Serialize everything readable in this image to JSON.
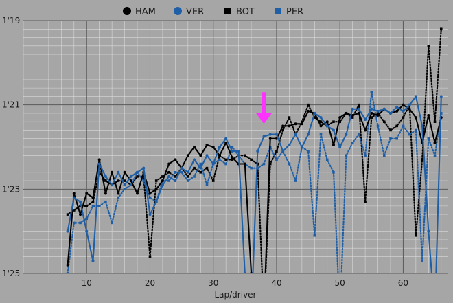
{
  "chart_data": {
    "type": "line",
    "xlabel": "Lap/driver",
    "ylabel": "",
    "xlim": [
      0,
      67
    ],
    "ylim": [
      85,
      79
    ],
    "y_reversed": true,
    "xticks": [
      10,
      20,
      30,
      40,
      50,
      60
    ],
    "yticks": [
      {
        "value": 79,
        "label": "1'19"
      },
      {
        "value": 81,
        "label": "1'21"
      },
      {
        "value": 83,
        "label": "1'23"
      },
      {
        "value": 85,
        "label": "1'25"
      }
    ],
    "grid": "major and minor",
    "legend_position": "top",
    "background_color": "#a6a6a6",
    "grid_color": "#d9d9d9",
    "annotation": {
      "type": "arrow",
      "color": "#ff33ff",
      "x": 38,
      "y_from": 80.7,
      "y_to": 81.45
    },
    "series": [
      {
        "name": "HAM",
        "color": "#000000",
        "style": "solid",
        "marker": "circle",
        "x": [
          7,
          8,
          9,
          10,
          11,
          12,
          13,
          14,
          15,
          16,
          17,
          18,
          19,
          20,
          21,
          22,
          23,
          24,
          25,
          26,
          27,
          28,
          29,
          30,
          31,
          32,
          33,
          34,
          35,
          36,
          37,
          38,
          39,
          40,
          41,
          42,
          43,
          44,
          45,
          46,
          47,
          48,
          49,
          50,
          51,
          52,
          53,
          54,
          55,
          56,
          57,
          58,
          59,
          60,
          61,
          62,
          63,
          64,
          65,
          66
        ],
        "y": [
          84.8,
          83.1,
          83.6,
          83.1,
          83.2,
          82.3,
          83.1,
          82.6,
          83.1,
          82.6,
          82.8,
          83.1,
          82.6,
          83.1,
          83.0,
          82.8,
          82.4,
          82.3,
          82.5,
          82.2,
          82.0,
          82.2,
          81.95,
          82.0,
          82.2,
          81.9,
          82.25,
          82.4,
          82.4,
          85.0,
          86.0,
          86.0,
          81.8,
          81.8,
          81.5,
          81.5,
          81.45,
          81.45,
          81.15,
          81.2,
          81.5,
          81.4,
          81.95,
          81.3,
          81.2,
          81.25,
          81.2,
          81.6,
          81.2,
          81.25,
          81.1,
          81.2,
          81.15,
          81.0,
          81.1,
          81.3,
          81.9,
          81.25,
          81.9,
          81.3
        ]
      },
      {
        "name": "VER",
        "color": "#1f5fa6",
        "style": "solid",
        "marker": "circle",
        "x": [
          7,
          8,
          9,
          10,
          11,
          12,
          13,
          14,
          15,
          16,
          17,
          18,
          19,
          20,
          21,
          22,
          23,
          24,
          25,
          26,
          27,
          28,
          29,
          30,
          31,
          32,
          33,
          34,
          35,
          36,
          37,
          38,
          39,
          40,
          41,
          42,
          43,
          44,
          45,
          46,
          47,
          48,
          49,
          50,
          51,
          52,
          53,
          54,
          55,
          56,
          57,
          58,
          59,
          60,
          61,
          62,
          63,
          64,
          65,
          66
        ],
        "y": [
          84.0,
          83.2,
          83.3,
          84.0,
          84.7,
          82.4,
          82.7,
          82.9,
          82.6,
          82.9,
          82.7,
          82.6,
          82.5,
          83.6,
          83.3,
          82.9,
          82.7,
          82.8,
          82.5,
          82.6,
          82.3,
          82.5,
          82.2,
          82.4,
          82.0,
          81.8,
          82.1,
          82.1,
          85.0,
          86.0,
          82.1,
          81.75,
          81.7,
          81.7,
          82.1,
          81.95,
          81.7,
          82.0,
          81.7,
          81.2,
          81.3,
          81.5,
          81.6,
          82.0,
          81.7,
          81.1,
          81.1,
          81.35,
          81.1,
          81.15,
          81.1,
          81.2,
          81.05,
          81.15,
          81.0,
          80.8,
          81.5,
          84.0,
          86.0,
          80.8
        ]
      },
      {
        "name": "BOT",
        "color": "#000000",
        "style": "dotted",
        "marker": "square",
        "x": [
          7,
          8,
          9,
          10,
          11,
          12,
          13,
          14,
          15,
          16,
          17,
          18,
          19,
          20,
          21,
          22,
          23,
          24,
          25,
          26,
          27,
          28,
          29,
          30,
          31,
          32,
          33,
          34,
          35,
          36,
          37,
          38,
          39,
          40,
          41,
          42,
          43,
          44,
          45,
          46,
          47,
          48,
          49,
          50,
          51,
          52,
          53,
          54,
          55,
          56,
          57,
          58,
          59,
          60,
          61,
          62,
          63,
          64,
          65,
          66
        ],
        "y": [
          83.6,
          83.5,
          83.4,
          83.4,
          83.3,
          82.6,
          82.8,
          82.9,
          82.8,
          82.8,
          82.9,
          82.7,
          82.7,
          84.6,
          82.8,
          82.7,
          82.6,
          82.7,
          82.5,
          82.7,
          82.5,
          82.6,
          82.5,
          82.8,
          82.2,
          82.3,
          82.3,
          82.2,
          82.2,
          82.3,
          82.4,
          86.0,
          82.4,
          82.1,
          81.6,
          81.3,
          81.7,
          81.4,
          81.0,
          81.3,
          81.4,
          81.5,
          81.4,
          81.4,
          81.2,
          81.3,
          81.0,
          83.3,
          81.3,
          81.2,
          81.4,
          81.6,
          81.5,
          81.3,
          81.0,
          84.1,
          82.3,
          79.6,
          81.4,
          79.2
        ]
      },
      {
        "name": "PER",
        "color": "#1f5fa6",
        "style": "dotted",
        "marker": "square",
        "x": [
          7,
          8,
          9,
          10,
          11,
          12,
          13,
          14,
          15,
          16,
          17,
          18,
          19,
          20,
          21,
          22,
          23,
          24,
          25,
          26,
          27,
          28,
          29,
          30,
          31,
          32,
          33,
          34,
          35,
          36,
          37,
          38,
          39,
          40,
          41,
          42,
          43,
          44,
          45,
          46,
          47,
          48,
          49,
          50,
          51,
          52,
          53,
          54,
          55,
          56,
          57,
          58,
          59,
          60,
          61,
          62,
          63,
          64,
          65,
          66
        ],
        "y": [
          85.0,
          83.8,
          83.8,
          83.7,
          83.4,
          83.4,
          83.3,
          83.8,
          83.2,
          83.0,
          82.9,
          82.6,
          82.8,
          83.2,
          83.3,
          82.8,
          82.8,
          82.6,
          82.6,
          82.8,
          82.7,
          82.4,
          82.9,
          82.4,
          82.3,
          82.4,
          82.0,
          82.2,
          82.4,
          82.5,
          82.5,
          82.4,
          82.0,
          82.3,
          82.1,
          82.4,
          82.8,
          82.0,
          82.1,
          84.1,
          81.7,
          82.3,
          82.6,
          86.0,
          82.2,
          81.9,
          81.7,
          82.2,
          80.7,
          81.5,
          82.2,
          81.8,
          81.8,
          81.5,
          81.7,
          81.6,
          84.7,
          81.8,
          82.2,
          81.2
        ]
      }
    ]
  }
}
